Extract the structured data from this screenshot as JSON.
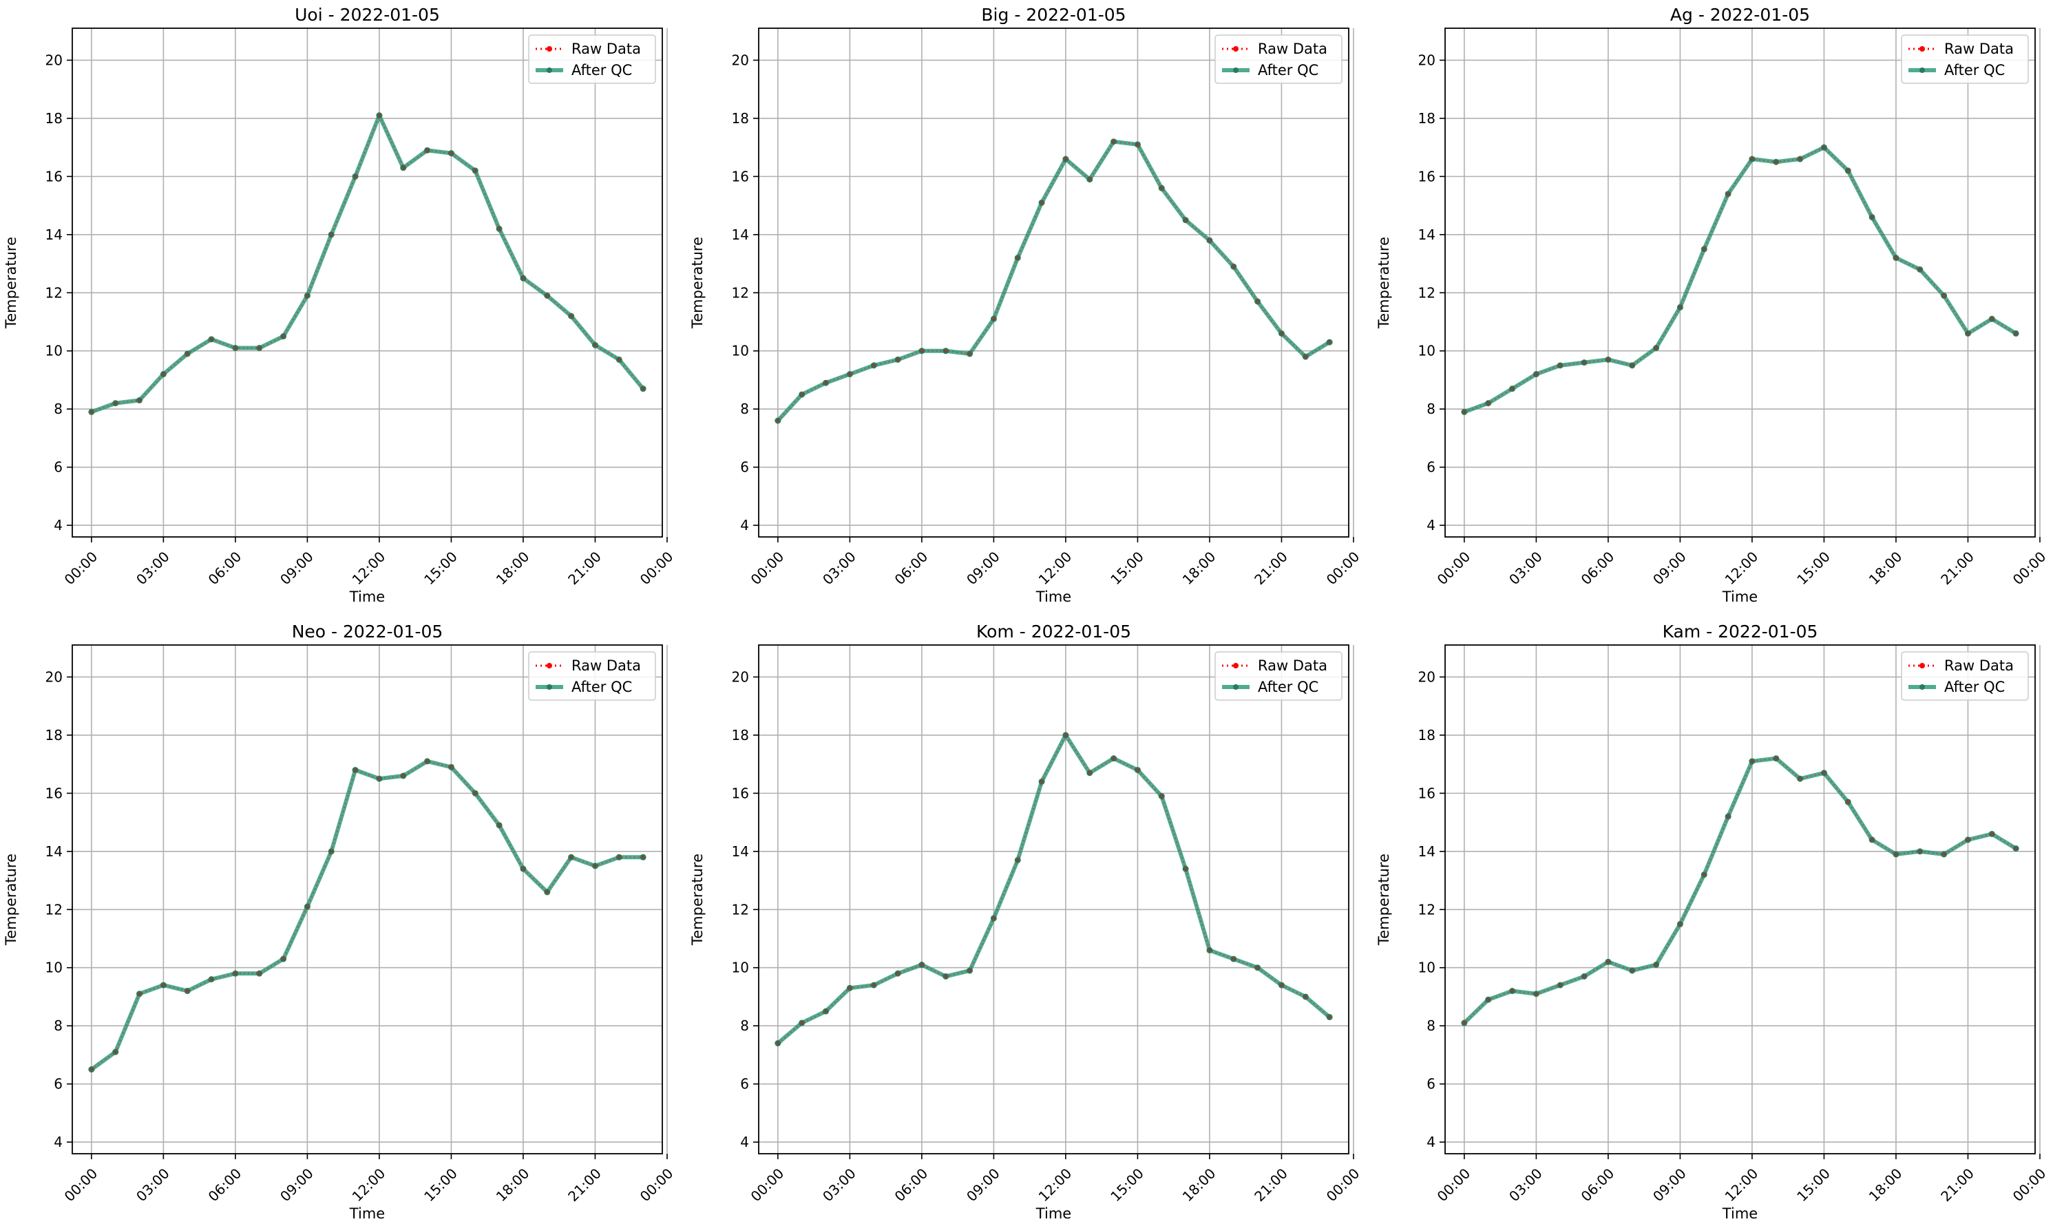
{
  "figure": {
    "background": "#ffffff"
  },
  "legend": {
    "raw_label": "Raw Data",
    "qc_label": "After QC",
    "position": "upper right"
  },
  "styles": {
    "raw_color": "#ff0000",
    "qc_color": "#2e9e7e",
    "qc_marker_color": "#2b7a5e",
    "grid_color": "#b0b0b0"
  },
  "chart_data": [
    {
      "type": "line",
      "title": "Uoi - 2022-01-05",
      "xlabel": "Time",
      "ylabel": "Temperature",
      "xlim": [
        -0.8,
        23.8
      ],
      "ylim": [
        3.6,
        21.1
      ],
      "x_ticks": [
        "00:00",
        "03:00",
        "06:00",
        "09:00",
        "12:00",
        "15:00",
        "18:00",
        "21:00",
        "00:00"
      ],
      "y_ticks": [
        4,
        6,
        8,
        10,
        12,
        14,
        16,
        18,
        20
      ],
      "grid": true,
      "x": [
        0,
        1,
        2,
        3,
        4,
        5,
        6,
        7,
        8,
        9,
        10,
        11,
        12,
        13,
        14,
        15,
        16,
        17,
        18,
        19,
        20,
        21,
        22,
        23
      ],
      "series": [
        {
          "name": "Raw Data",
          "values": [
            7.9,
            8.2,
            8.3,
            9.2,
            9.9,
            10.4,
            10.1,
            10.1,
            10.5,
            11.9,
            14.0,
            16.0,
            18.1,
            16.3,
            16.9,
            16.8,
            16.2,
            14.2,
            12.5,
            11.9,
            11.2,
            10.2,
            9.7,
            8.7
          ]
        },
        {
          "name": "After QC",
          "values": [
            7.9,
            8.2,
            8.3,
            9.2,
            9.9,
            10.4,
            10.1,
            10.1,
            10.5,
            11.9,
            14.0,
            16.0,
            18.1,
            16.3,
            16.9,
            16.8,
            16.2,
            14.2,
            12.5,
            11.9,
            11.2,
            10.2,
            9.7,
            8.7
          ]
        }
      ]
    },
    {
      "type": "line",
      "title": "Big - 2022-01-05",
      "xlabel": "Time",
      "ylabel": "Temperature",
      "xlim": [
        -0.8,
        23.8
      ],
      "ylim": [
        3.6,
        21.1
      ],
      "x_ticks": [
        "00:00",
        "03:00",
        "06:00",
        "09:00",
        "12:00",
        "15:00",
        "18:00",
        "21:00",
        "00:00"
      ],
      "y_ticks": [
        4,
        6,
        8,
        10,
        12,
        14,
        16,
        18,
        20
      ],
      "grid": true,
      "x": [
        0,
        1,
        2,
        3,
        4,
        5,
        6,
        7,
        8,
        9,
        10,
        11,
        12,
        13,
        14,
        15,
        16,
        17,
        18,
        19,
        20,
        21,
        22,
        23
      ],
      "series": [
        {
          "name": "Raw Data",
          "values": [
            7.6,
            8.5,
            8.9,
            9.2,
            9.5,
            9.7,
            10.0,
            10.0,
            9.9,
            11.1,
            13.2,
            15.1,
            16.6,
            15.9,
            17.2,
            17.1,
            15.6,
            14.5,
            13.8,
            12.9,
            11.7,
            10.6,
            9.8,
            10.3
          ]
        },
        {
          "name": "After QC",
          "values": [
            7.6,
            8.5,
            8.9,
            9.2,
            9.5,
            9.7,
            10.0,
            10.0,
            9.9,
            11.1,
            13.2,
            15.1,
            16.6,
            15.9,
            17.2,
            17.1,
            15.6,
            14.5,
            13.8,
            12.9,
            11.7,
            10.6,
            9.8,
            10.3
          ]
        }
      ]
    },
    {
      "type": "line",
      "title": "Ag - 2022-01-05",
      "xlabel": "Time",
      "ylabel": "Temperature",
      "xlim": [
        -0.8,
        23.8
      ],
      "ylim": [
        3.6,
        21.1
      ],
      "x_ticks": [
        "00:00",
        "03:00",
        "06:00",
        "09:00",
        "12:00",
        "15:00",
        "18:00",
        "21:00",
        "00:00"
      ],
      "y_ticks": [
        4,
        6,
        8,
        10,
        12,
        14,
        16,
        18,
        20
      ],
      "grid": true,
      "x": [
        0,
        1,
        2,
        3,
        4,
        5,
        6,
        7,
        8,
        9,
        10,
        11,
        12,
        13,
        14,
        15,
        16,
        17,
        18,
        19,
        20,
        21,
        22,
        23
      ],
      "series": [
        {
          "name": "Raw Data",
          "values": [
            7.9,
            8.2,
            8.7,
            9.2,
            9.5,
            9.6,
            9.7,
            9.5,
            10.1,
            11.5,
            13.5,
            15.4,
            16.6,
            16.5,
            16.6,
            17.0,
            16.2,
            14.6,
            13.2,
            12.8,
            11.9,
            10.6,
            11.1,
            10.6
          ]
        },
        {
          "name": "After QC",
          "values": [
            7.9,
            8.2,
            8.7,
            9.2,
            9.5,
            9.6,
            9.7,
            9.5,
            10.1,
            11.5,
            13.5,
            15.4,
            16.6,
            16.5,
            16.6,
            17.0,
            16.2,
            14.6,
            13.2,
            12.8,
            11.9,
            10.6,
            11.1,
            10.6
          ]
        }
      ]
    },
    {
      "type": "line",
      "title": "Neo - 2022-01-05",
      "xlabel": "Time",
      "ylabel": "Temperature",
      "xlim": [
        -0.8,
        23.8
      ],
      "ylim": [
        3.6,
        21.1
      ],
      "x_ticks": [
        "00:00",
        "03:00",
        "06:00",
        "09:00",
        "12:00",
        "15:00",
        "18:00",
        "21:00",
        "00:00"
      ],
      "y_ticks": [
        4,
        6,
        8,
        10,
        12,
        14,
        16,
        18,
        20
      ],
      "grid": true,
      "x": [
        0,
        1,
        2,
        3,
        4,
        5,
        6,
        7,
        8,
        9,
        10,
        11,
        12,
        13,
        14,
        15,
        16,
        17,
        18,
        19,
        20,
        21,
        22,
        23
      ],
      "series": [
        {
          "name": "Raw Data",
          "values": [
            6.5,
            7.1,
            9.1,
            9.4,
            9.2,
            9.6,
            9.8,
            9.8,
            10.3,
            12.1,
            14.0,
            16.8,
            16.5,
            16.6,
            17.1,
            16.9,
            16.0,
            14.9,
            13.4,
            12.6,
            13.8,
            13.5,
            13.8,
            13.8
          ]
        },
        {
          "name": "After QC",
          "values": [
            6.5,
            7.1,
            9.1,
            9.4,
            9.2,
            9.6,
            9.8,
            9.8,
            10.3,
            12.1,
            14.0,
            16.8,
            16.5,
            16.6,
            17.1,
            16.9,
            16.0,
            14.9,
            13.4,
            12.6,
            13.8,
            13.5,
            13.8,
            13.8
          ]
        }
      ]
    },
    {
      "type": "line",
      "title": "Kom - 2022-01-05",
      "xlabel": "Time",
      "ylabel": "Temperature",
      "xlim": [
        -0.8,
        23.8
      ],
      "ylim": [
        3.6,
        21.1
      ],
      "x_ticks": [
        "00:00",
        "03:00",
        "06:00",
        "09:00",
        "12:00",
        "15:00",
        "18:00",
        "21:00",
        "00:00"
      ],
      "y_ticks": [
        4,
        6,
        8,
        10,
        12,
        14,
        16,
        18,
        20
      ],
      "grid": true,
      "x": [
        0,
        1,
        2,
        3,
        4,
        5,
        6,
        7,
        8,
        9,
        10,
        11,
        12,
        13,
        14,
        15,
        16,
        17,
        18,
        19,
        20,
        21,
        22,
        23
      ],
      "series": [
        {
          "name": "Raw Data",
          "values": [
            7.4,
            8.1,
            8.5,
            9.3,
            9.4,
            9.8,
            10.1,
            9.7,
            9.9,
            11.7,
            13.7,
            16.4,
            18.0,
            16.7,
            17.2,
            16.8,
            15.9,
            13.4,
            10.6,
            10.3,
            10.0,
            9.4,
            9.0,
            8.3
          ]
        },
        {
          "name": "After QC",
          "values": [
            7.4,
            8.1,
            8.5,
            9.3,
            9.4,
            9.8,
            10.1,
            9.7,
            9.9,
            11.7,
            13.7,
            16.4,
            18.0,
            16.7,
            17.2,
            16.8,
            15.9,
            13.4,
            10.6,
            10.3,
            10.0,
            9.4,
            9.0,
            8.3
          ]
        }
      ]
    },
    {
      "type": "line",
      "title": "Kam - 2022-01-05",
      "xlabel": "Time",
      "ylabel": "Temperature",
      "xlim": [
        -0.8,
        23.8
      ],
      "ylim": [
        3.6,
        21.1
      ],
      "x_ticks": [
        "00:00",
        "03:00",
        "06:00",
        "09:00",
        "12:00",
        "15:00",
        "18:00",
        "21:00",
        "00:00"
      ],
      "y_ticks": [
        4,
        6,
        8,
        10,
        12,
        14,
        16,
        18,
        20
      ],
      "grid": true,
      "x": [
        0,
        1,
        2,
        3,
        4,
        5,
        6,
        7,
        8,
        9,
        10,
        11,
        12,
        13,
        14,
        15,
        16,
        17,
        18,
        19,
        20,
        21,
        22,
        23
      ],
      "series": [
        {
          "name": "Raw Data",
          "values": [
            8.1,
            8.9,
            9.2,
            9.1,
            9.4,
            9.7,
            10.2,
            9.9,
            10.1,
            11.5,
            13.2,
            15.2,
            17.1,
            17.2,
            16.5,
            16.7,
            15.7,
            14.4,
            13.9,
            14.0,
            13.9,
            14.4,
            14.6,
            14.1
          ]
        },
        {
          "name": "After QC",
          "values": [
            8.1,
            8.9,
            9.2,
            9.1,
            9.4,
            9.7,
            10.2,
            9.9,
            10.1,
            11.5,
            13.2,
            15.2,
            17.1,
            17.2,
            16.5,
            16.7,
            15.7,
            14.4,
            13.9,
            14.0,
            13.9,
            14.4,
            14.6,
            14.1
          ]
        }
      ]
    }
  ]
}
